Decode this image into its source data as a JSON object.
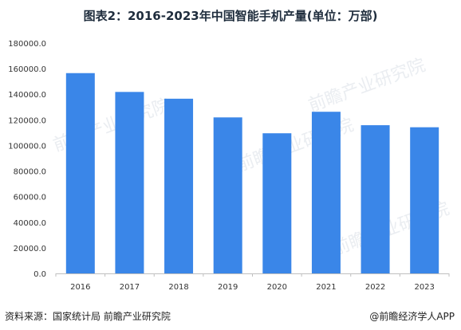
{
  "title": "图表2：2016-2023年中国智能手机产量(单位：万部)",
  "footer": {
    "source": "资料来源：国家统计局 前瞻产业研究院",
    "brand": "@前瞻经济学人APP"
  },
  "watermark": {
    "text": "前瞻产业研究院"
  },
  "chart_data": {
    "type": "bar",
    "categories": [
      "2016",
      "2017",
      "2018",
      "2019",
      "2020",
      "2021",
      "2022",
      "2023"
    ],
    "values": [
      156500,
      141800,
      136500,
      121900,
      109500,
      126300,
      115800,
      114200
    ],
    "ylim": [
      0,
      180000
    ],
    "yticks": [
      "0.0",
      "20000.0",
      "40000.0",
      "60000.0",
      "80000.0",
      "100000.0",
      "120000.0",
      "140000.0",
      "160000.0",
      "180000.0"
    ],
    "bar_color": "#3a86e8",
    "grid": false
  }
}
